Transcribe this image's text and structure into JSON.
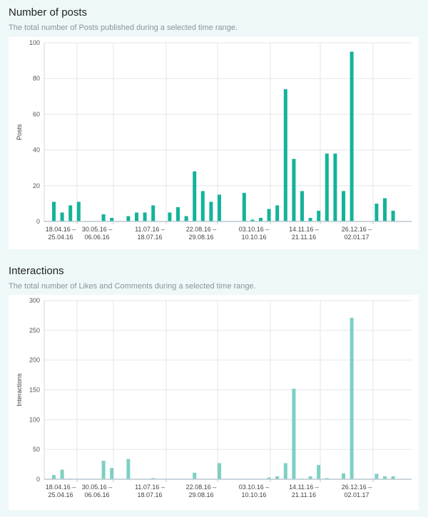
{
  "posts": {
    "title": "Number of posts",
    "subtitle": "The total number of Posts published during a selected time range."
  },
  "interactions": {
    "title": "Interactions",
    "subtitle": "The total number of Likes and Comments during a selected time range."
  },
  "chart_data": [
    {
      "type": "bar",
      "ylabel": "Posts",
      "ylim": [
        0,
        100
      ],
      "yticks": [
        0,
        20,
        40,
        60,
        80,
        100
      ],
      "grid": true,
      "color": "#14b39a",
      "x_tick_labels": [
        [
          "18.04.16 –",
          "25.04.16"
        ],
        [
          "30.05.16 –",
          "06.06.16"
        ],
        [
          "11.07.16 –",
          "18.07.16"
        ],
        [
          "22.08.16 –",
          "29.08.16"
        ],
        [
          "03.10.16 –",
          "10.10.16"
        ],
        [
          "14.11.16 –",
          "21.11.16"
        ],
        [
          "26.12.16 –",
          "02.01.17"
        ]
      ],
      "values": [
        11,
        5,
        9,
        11,
        0,
        0,
        4,
        2,
        0,
        3,
        5,
        5,
        9,
        0,
        5,
        8,
        3,
        28,
        17,
        11,
        15,
        0,
        0,
        16,
        1,
        2,
        7,
        9,
        74,
        35,
        17,
        2,
        6,
        38,
        38,
        17,
        95,
        0,
        0,
        10,
        13,
        6
      ]
    },
    {
      "type": "bar",
      "ylabel": "Interactions",
      "ylim": [
        0,
        300
      ],
      "yticks": [
        0,
        50,
        100,
        150,
        200,
        250,
        300
      ],
      "grid": true,
      "color": "#7dd0c3",
      "x_tick_labels": [
        [
          "18.04.16 –",
          "25.04.16"
        ],
        [
          "30.05.16 –",
          "06.06.16"
        ],
        [
          "11.07.16 –",
          "18.07.16"
        ],
        [
          "22.08.16 –",
          "29.08.16"
        ],
        [
          "03.10.16 –",
          "10.10.16"
        ],
        [
          "14.11.16 –",
          "21.11.16"
        ],
        [
          "26.12.16 –",
          "02.01.17"
        ]
      ],
      "values": [
        7,
        16,
        1,
        0,
        0,
        0,
        31,
        19,
        0,
        34,
        0,
        0,
        2,
        0,
        0,
        0,
        0,
        11,
        0,
        0,
        27,
        0,
        0,
        0,
        0,
        0,
        3,
        5,
        27,
        152,
        1,
        5,
        24,
        2,
        0,
        10,
        271,
        1,
        0,
        9,
        5,
        5
      ]
    }
  ]
}
